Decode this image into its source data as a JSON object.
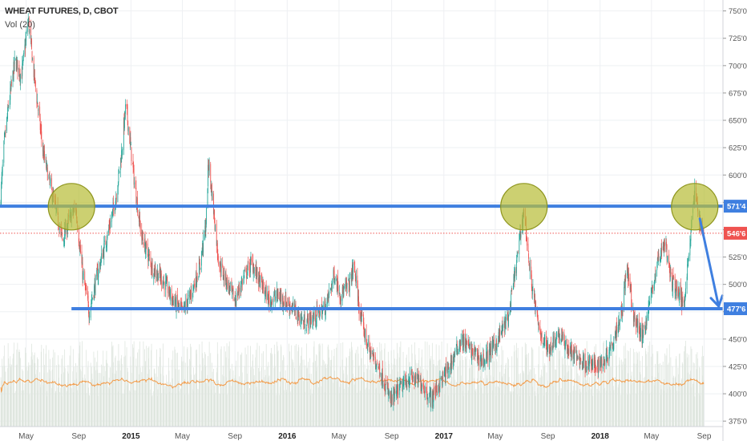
{
  "header": {
    "title": "WHEAT FUTURES, D, CBOT",
    "volume_label": "Vol (20)"
  },
  "colors": {
    "background": "#ffffff",
    "grid": "#eef0f3",
    "up": "#26a69a",
    "down": "#ef5350",
    "level_line": "#3f7fe0",
    "current_price": "#ef5350",
    "volume_bars": "#dfe6df",
    "volume_ma": "#f39c4a",
    "circle_fill": "#b9be3a",
    "circle_stroke": "#8f961f",
    "axis_text": "#555555"
  },
  "chart_data": {
    "type": "candlestick",
    "title": "WHEAT FUTURES, D, CBOT",
    "series_label": "Vol (20)",
    "y_axis": {
      "min": 370,
      "max": 760,
      "ticks": [
        "750'0",
        "725'0",
        "700'0",
        "675'0",
        "650'0",
        "625'0",
        "600'0",
        "575'0",
        "550'0",
        "525'0",
        "500'0",
        "475'0",
        "450'0",
        "425'0",
        "400'0",
        "375'0"
      ],
      "tick_values": [
        750,
        725,
        700,
        675,
        650,
        625,
        600,
        575,
        550,
        525,
        500,
        475,
        450,
        425,
        400,
        375
      ]
    },
    "x_axis": {
      "start": "2014-03-01",
      "end": "2018-10-15",
      "ticks": [
        {
          "label": "May",
          "date": "2014-05-01"
        },
        {
          "label": "Sep",
          "date": "2014-09-01"
        },
        {
          "label": "2015",
          "date": "2015-01-01",
          "bold": true
        },
        {
          "label": "May",
          "date": "2015-05-01"
        },
        {
          "label": "Sep",
          "date": "2015-09-01"
        },
        {
          "label": "2016",
          "date": "2016-01-01",
          "bold": true
        },
        {
          "label": "May",
          "date": "2016-05-01"
        },
        {
          "label": "Sep",
          "date": "2016-09-01"
        },
        {
          "label": "2017",
          "date": "2017-01-01",
          "bold": true
        },
        {
          "label": "May",
          "date": "2017-05-01"
        },
        {
          "label": "Sep",
          "date": "2017-09-01"
        },
        {
          "label": "2018",
          "date": "2018-01-01",
          "bold": true
        },
        {
          "label": "May",
          "date": "2018-05-01"
        },
        {
          "label": "Sep",
          "date": "2018-09-01"
        }
      ]
    },
    "price_path": [
      {
        "date": "2014-03-01",
        "value": 570
      },
      {
        "date": "2014-03-10",
        "value": 625
      },
      {
        "date": "2014-03-20",
        "value": 660
      },
      {
        "date": "2014-04-05",
        "value": 705
      },
      {
        "date": "2014-04-20",
        "value": 690
      },
      {
        "date": "2014-05-06",
        "value": 742
      },
      {
        "date": "2014-05-20",
        "value": 690
      },
      {
        "date": "2014-06-10",
        "value": 620
      },
      {
        "date": "2014-07-05",
        "value": 575
      },
      {
        "date": "2014-07-25",
        "value": 540
      },
      {
        "date": "2014-08-10",
        "value": 560
      },
      {
        "date": "2014-08-25",
        "value": 570
      },
      {
        "date": "2014-09-10",
        "value": 510
      },
      {
        "date": "2014-09-25",
        "value": 475
      },
      {
        "date": "2014-10-15",
        "value": 510
      },
      {
        "date": "2014-11-10",
        "value": 550
      },
      {
        "date": "2014-11-25",
        "value": 575
      },
      {
        "date": "2014-12-10",
        "value": 620
      },
      {
        "date": "2014-12-20",
        "value": 665
      },
      {
        "date": "2015-01-10",
        "value": 590
      },
      {
        "date": "2015-01-25",
        "value": 545
      },
      {
        "date": "2015-02-20",
        "value": 515
      },
      {
        "date": "2015-03-15",
        "value": 505
      },
      {
        "date": "2015-04-10",
        "value": 485
      },
      {
        "date": "2015-05-01",
        "value": 475
      },
      {
        "date": "2015-05-20",
        "value": 490
      },
      {
        "date": "2015-06-10",
        "value": 515
      },
      {
        "date": "2015-06-25",
        "value": 555
      },
      {
        "date": "2015-07-01",
        "value": 612
      },
      {
        "date": "2015-07-10",
        "value": 580
      },
      {
        "date": "2015-07-25",
        "value": 520
      },
      {
        "date": "2015-08-15",
        "value": 500
      },
      {
        "date": "2015-09-01",
        "value": 485
      },
      {
        "date": "2015-09-20",
        "value": 505
      },
      {
        "date": "2015-10-10",
        "value": 520
      },
      {
        "date": "2015-11-01",
        "value": 500
      },
      {
        "date": "2015-11-20",
        "value": 485
      },
      {
        "date": "2015-12-10",
        "value": 490
      },
      {
        "date": "2016-01-10",
        "value": 480
      },
      {
        "date": "2016-02-10",
        "value": 465
      },
      {
        "date": "2016-03-05",
        "value": 470
      },
      {
        "date": "2016-04-01",
        "value": 480
      },
      {
        "date": "2016-04-20",
        "value": 510
      },
      {
        "date": "2016-05-05",
        "value": 490
      },
      {
        "date": "2016-05-25",
        "value": 500
      },
      {
        "date": "2016-06-05",
        "value": 518
      },
      {
        "date": "2016-06-20",
        "value": 470
      },
      {
        "date": "2016-07-10",
        "value": 440
      },
      {
        "date": "2016-08-01",
        "value": 425
      },
      {
        "date": "2016-08-31",
        "value": 393
      },
      {
        "date": "2016-09-20",
        "value": 405
      },
      {
        "date": "2016-10-15",
        "value": 415
      },
      {
        "date": "2016-11-10",
        "value": 410
      },
      {
        "date": "2016-12-01",
        "value": 395
      },
      {
        "date": "2016-12-20",
        "value": 408
      },
      {
        "date": "2017-01-15",
        "value": 425
      },
      {
        "date": "2017-02-10",
        "value": 450
      },
      {
        "date": "2017-03-05",
        "value": 440
      },
      {
        "date": "2017-04-01",
        "value": 430
      },
      {
        "date": "2017-05-01",
        "value": 445
      },
      {
        "date": "2017-06-01",
        "value": 470
      },
      {
        "date": "2017-06-20",
        "value": 520
      },
      {
        "date": "2017-07-07",
        "value": 570
      },
      {
        "date": "2017-07-20",
        "value": 515
      },
      {
        "date": "2017-08-10",
        "value": 460
      },
      {
        "date": "2017-09-01",
        "value": 440
      },
      {
        "date": "2017-09-25",
        "value": 455
      },
      {
        "date": "2017-10-20",
        "value": 440
      },
      {
        "date": "2017-11-20",
        "value": 430
      },
      {
        "date": "2017-12-20",
        "value": 425
      },
      {
        "date": "2018-01-10",
        "value": 430
      },
      {
        "date": "2018-02-01",
        "value": 450
      },
      {
        "date": "2018-02-20",
        "value": 475
      },
      {
        "date": "2018-03-05",
        "value": 515
      },
      {
        "date": "2018-03-20",
        "value": 470
      },
      {
        "date": "2018-04-10",
        "value": 452
      },
      {
        "date": "2018-04-25",
        "value": 480
      },
      {
        "date": "2018-05-15",
        "value": 520
      },
      {
        "date": "2018-06-01",
        "value": 540
      },
      {
        "date": "2018-06-15",
        "value": 505
      },
      {
        "date": "2018-07-01",
        "value": 495
      },
      {
        "date": "2018-07-15",
        "value": 480
      },
      {
        "date": "2018-07-25",
        "value": 520
      },
      {
        "date": "2018-08-05",
        "value": 565
      },
      {
        "date": "2018-08-10",
        "value": 585
      },
      {
        "date": "2018-08-20",
        "value": 562
      },
      {
        "date": "2018-08-31",
        "value": 546.75
      }
    ],
    "horizontal_levels": [
      {
        "label": "571'4",
        "value": 571.5,
        "start": "2014-03-01",
        "end": "2018-10-15",
        "color": "#3f7fe0"
      },
      {
        "label": "477'6",
        "value": 477.75,
        "start": "2014-08-15",
        "end": "2018-10-15",
        "color": "#3f7fe0"
      }
    ],
    "current_price": {
      "label": "546'6",
      "value": 546.75,
      "color": "#ef5350"
    },
    "highlight_circles": [
      {
        "date": "2014-08-15",
        "value": 571
      },
      {
        "date": "2017-07-07",
        "value": 571
      },
      {
        "date": "2018-08-10",
        "value": 571
      }
    ],
    "projection_arrow": {
      "from": {
        "date": "2018-08-22",
        "value": 560
      },
      "to": {
        "date": "2018-10-05",
        "value": 480
      }
    },
    "volume": {
      "min": 0,
      "max": 100
    }
  }
}
